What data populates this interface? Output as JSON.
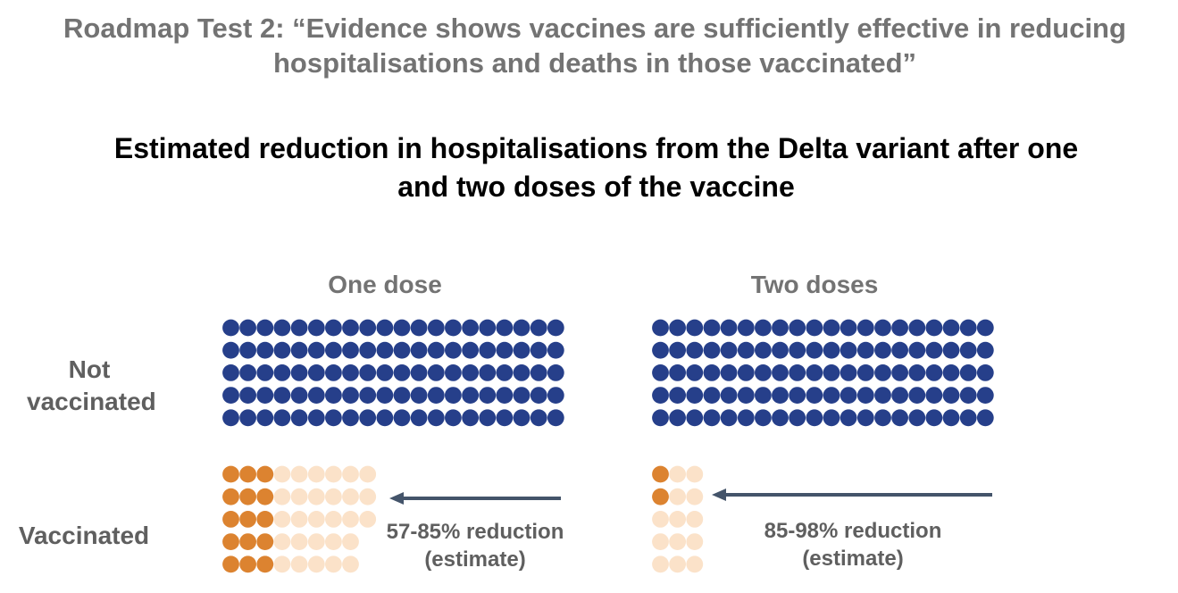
{
  "header": {
    "supertitle_line1": "Roadmap Test 2: “Evidence shows vaccines are sufficiently effective in reducing",
    "supertitle_line2": "hospitalisations and deaths in those vaccinated”",
    "title_line1": "Estimated reduction in hospitalisations from the Delta variant after one",
    "title_line2": "and two doses of the vaccine"
  },
  "colors": {
    "not_vaccinated": "#263f8a",
    "hospitalised_vaccinated": "#dc8330",
    "prevented": "#fbe2c9",
    "arrow": "#44546a"
  },
  "chart_data": {
    "type": "pictogram",
    "title": "Estimated reduction in hospitalisations from the Delta variant after one and two doses of the vaccine",
    "row_labels": {
      "not_vaccinated": "Not vaccinated",
      "vaccinated": "Vaccinated"
    },
    "panels": [
      {
        "name": "One dose",
        "not_vaccinated": {
          "count": 100,
          "rows": [
            20,
            20,
            20,
            20,
            20
          ]
        },
        "vaccinated": {
          "rows": [
            {
              "hospitalised": 3,
              "prevented": 6
            },
            {
              "hospitalised": 3,
              "prevented": 6
            },
            {
              "hospitalised": 3,
              "prevented": 6
            },
            {
              "hospitalised": 3,
              "prevented": 5
            },
            {
              "hospitalised": 3,
              "prevented": 5
            }
          ],
          "hospitalised_total": 15,
          "prevented_total": 28
        },
        "reduction_label": "57-85% reduction",
        "reduction_note": "(estimate)",
        "reduction_range_pct": [
          57,
          85
        ]
      },
      {
        "name": "Two doses",
        "not_vaccinated": {
          "count": 100,
          "rows": [
            20,
            20,
            20,
            20,
            20
          ]
        },
        "vaccinated": {
          "rows": [
            {
              "hospitalised": 1,
              "prevented": 2
            },
            {
              "hospitalised": 1,
              "prevented": 2
            },
            {
              "hospitalised": 0,
              "prevented": 3
            },
            {
              "hospitalised": 0,
              "prevented": 3
            },
            {
              "hospitalised": 0,
              "prevented": 3
            }
          ],
          "hospitalised_total": 2,
          "prevented_total": 13
        },
        "reduction_label": "85-98% reduction",
        "reduction_note": "(estimate)",
        "reduction_range_pct": [
          85,
          98
        ]
      }
    ]
  }
}
